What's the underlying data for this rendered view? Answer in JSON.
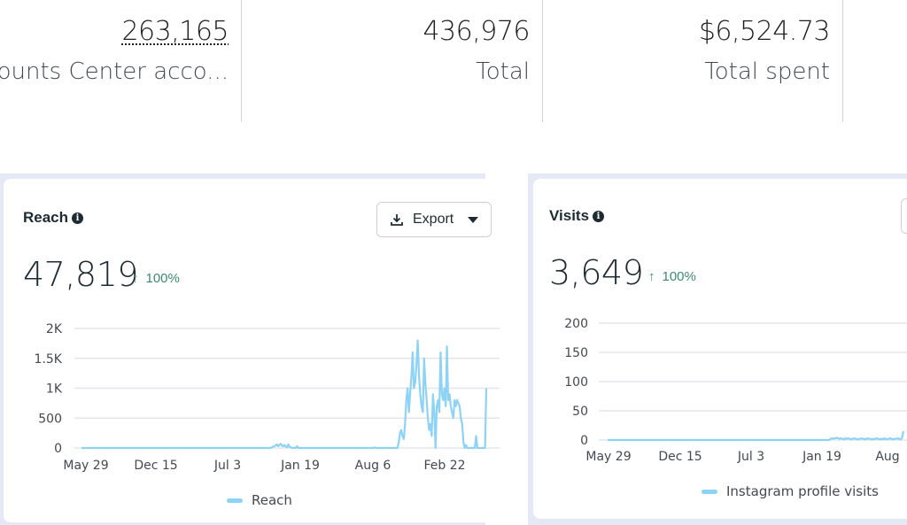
{
  "stats": [
    {
      "value": "263,165",
      "label": "ounts Center acco...",
      "dotted": true
    },
    {
      "value": "436,976",
      "label": "Total"
    },
    {
      "value": "$6,524.73",
      "label": "Total spent"
    }
  ],
  "reach_card": {
    "title": "Reach",
    "value": "47,819",
    "delta": "100%",
    "delta_direction": "up",
    "export_label": "Export",
    "legend": "Reach"
  },
  "visits_card": {
    "title": "Visits",
    "value": "3,649",
    "delta": "100%",
    "delta_direction": "up",
    "legend": "Instagram profile visits"
  },
  "colors": {
    "series": "#8cd3f7",
    "delta_up": "#3d8a6d",
    "card_border": "#e4e9f5"
  },
  "chart_data": [
    {
      "type": "line",
      "title": "Reach",
      "xlabel": "",
      "ylabel": "",
      "x_ticks": [
        "May 29",
        "Dec 15",
        "Jul 3",
        "Jan 19",
        "Aug 6",
        "Feb 22"
      ],
      "y_ticks": [
        "0",
        "500",
        "1K",
        "1.5K",
        "2K"
      ],
      "ylim": [
        0,
        2000
      ],
      "grid": true,
      "legend": "bottom-center",
      "series": [
        {
          "name": "Reach",
          "values": [
            0,
            0,
            0,
            0,
            0,
            0,
            0,
            0,
            0,
            0,
            0,
            0,
            0,
            0,
            0,
            0,
            0,
            0,
            0,
            0,
            0,
            0,
            0,
            0,
            0,
            0,
            0,
            0,
            0,
            0,
            0,
            0,
            0,
            0,
            0,
            0,
            0,
            0,
            0,
            0,
            0,
            0,
            0,
            0,
            0,
            0,
            0,
            0,
            0,
            0,
            0,
            0,
            0,
            0,
            0,
            0,
            0,
            0,
            0,
            0,
            0,
            0,
            0,
            0,
            0,
            0,
            0,
            0,
            0,
            0,
            0,
            0,
            0,
            0,
            0,
            0,
            0,
            0,
            0,
            0,
            0,
            0,
            0,
            0,
            0,
            0,
            0,
            0,
            0,
            0,
            0,
            0,
            0,
            0,
            0,
            0,
            0,
            0,
            0,
            0,
            0,
            0,
            0,
            0,
            0,
            0,
            0,
            0,
            0,
            0,
            0,
            0,
            0,
            0,
            0,
            0,
            0,
            0,
            0,
            0,
            0,
            0,
            0,
            0,
            0,
            0,
            0,
            0,
            0,
            0,
            0,
            0,
            0,
            0,
            0,
            0,
            0,
            0,
            0,
            0,
            0,
            0,
            0,
            0,
            0,
            0,
            0,
            0,
            0,
            0,
            10,
            20,
            30,
            40,
            60,
            30,
            50,
            70,
            40,
            30,
            50,
            20,
            10,
            60,
            20,
            10,
            0,
            0,
            5,
            0,
            30,
            0,
            0,
            0,
            0,
            0,
            0,
            0,
            0,
            0,
            0,
            0,
            0,
            0,
            0,
            0,
            0,
            0,
            0,
            0,
            0,
            0,
            0,
            0,
            0,
            0,
            0,
            0,
            0,
            0,
            0,
            0,
            0,
            0,
            0,
            0,
            0,
            0,
            0,
            0,
            0,
            0,
            0,
            0,
            0,
            0,
            0,
            0,
            0,
            0,
            0,
            0,
            0,
            0,
            0,
            0,
            0,
            0,
            0,
            0,
            0,
            10,
            0,
            0,
            0,
            0,
            0,
            0,
            0,
            0,
            0,
            0,
            0,
            0,
            0,
            0,
            0,
            0,
            0,
            0,
            100,
            250,
            300,
            200,
            150,
            400,
            800,
            1000,
            600,
            900,
            1200,
            1600,
            1000,
            1100,
            1400,
            1800,
            1200,
            900,
            700,
            600,
            1500,
            1100,
            800,
            500,
            300,
            400,
            200,
            900,
            600,
            0,
            700,
            800,
            600,
            1600,
            900,
            800,
            1000,
            700,
            1700,
            800,
            900,
            700,
            600,
            500,
            800,
            700,
            800,
            750,
            700,
            500,
            400,
            100,
            0,
            50,
            0,
            0,
            0,
            0,
            0,
            0,
            0,
            200,
            0,
            0,
            0,
            0,
            0,
            0,
            0,
            1000
          ]
        }
      ]
    },
    {
      "type": "line",
      "title": "Visits",
      "xlabel": "",
      "ylabel": "",
      "x_ticks": [
        "May 29",
        "Dec 15",
        "Jul 3",
        "Jan 19",
        "Aug"
      ],
      "y_ticks": [
        "0",
        "50",
        "100",
        "150",
        "200"
      ],
      "ylim": [
        0,
        200
      ],
      "grid": true,
      "legend": "bottom-center",
      "series": [
        {
          "name": "Instagram profile visits",
          "values": [
            0,
            0,
            0,
            0,
            0,
            0,
            0,
            0,
            0,
            0,
            0,
            0,
            0,
            0,
            0,
            0,
            0,
            0,
            0,
            0,
            0,
            0,
            0,
            0,
            0,
            0,
            0,
            0,
            0,
            0,
            0,
            0,
            0,
            0,
            0,
            0,
            0,
            0,
            0,
            0,
            0,
            0,
            0,
            0,
            0,
            0,
            0,
            0,
            0,
            0,
            0,
            0,
            0,
            0,
            0,
            0,
            0,
            0,
            0,
            0,
            0,
            0,
            0,
            0,
            0,
            0,
            0,
            0,
            0,
            0,
            0,
            0,
            0,
            0,
            0,
            0,
            0,
            0,
            0,
            0,
            0,
            0,
            0,
            0,
            0,
            0,
            0,
            0,
            0,
            0,
            0,
            0,
            0,
            0,
            0,
            0,
            0,
            0,
            0,
            0,
            0,
            0,
            0,
            0,
            0,
            0,
            0,
            0,
            0,
            0,
            0,
            0,
            0,
            0,
            0,
            0,
            0,
            0,
            0,
            0,
            0,
            0,
            0,
            0,
            0,
            0,
            0,
            0,
            0,
            0,
            0,
            0,
            0,
            0,
            0,
            0,
            0,
            0,
            0,
            0,
            0,
            0,
            0,
            0,
            0,
            0,
            0,
            0,
            0,
            0,
            2,
            3,
            2,
            3,
            4,
            3,
            2,
            3,
            2,
            1,
            3,
            2,
            3,
            2,
            1,
            2,
            3,
            2,
            1,
            2,
            2,
            3,
            2,
            1,
            2,
            3,
            2,
            1,
            2,
            1,
            2,
            3,
            2,
            1,
            2,
            1,
            3,
            2,
            1,
            2,
            3,
            2,
            1,
            2,
            2,
            3,
            2,
            1,
            3,
            15
          ]
        }
      ]
    }
  ]
}
